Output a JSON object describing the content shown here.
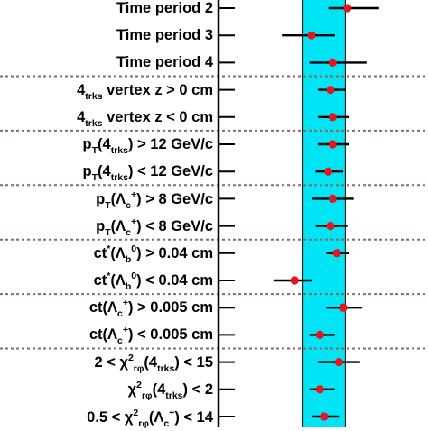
{
  "chart_data": {
    "type": "scatter",
    "orientation": "horizontal",
    "title": "",
    "xlabel": "",
    "ylabel": "",
    "xlim": [
      -5,
      5
    ],
    "band": [
      -1,
      1
    ],
    "grid": false,
    "legend": "none",
    "colors": {
      "point": "#e8141c",
      "error_bar": "#000000",
      "band": "#00e5f5",
      "band_edge": "#000000",
      "separator": "#8c6a58",
      "axis": "#000000"
    },
    "categories": [
      {
        "label": "Time period 2",
        "x": 1.1,
        "err_lo": 0.9,
        "err_hi": 1.5
      },
      {
        "label": "Time period 3",
        "x": -0.6,
        "err_lo": 1.4,
        "err_hi": 1.1
      },
      {
        "label": "Time period 4",
        "x": 0.4,
        "err_lo": 1.1,
        "err_hi": 1.6
      },
      {
        "label": "4trks vertex z > 0 cm",
        "x": 0.3,
        "err_lo": 0.6,
        "err_hi": 0.7
      },
      {
        "label": "4trks vertex z < 0 cm",
        "x": 0.4,
        "err_lo": 0.7,
        "err_hi": 0.8
      },
      {
        "label": "pT(4trks) > 12 GeV/c",
        "x": 0.4,
        "err_lo": 0.7,
        "err_hi": 0.8
      },
      {
        "label": "pT(4trks) < 12 GeV/c",
        "x": 0.2,
        "err_lo": 0.6,
        "err_hi": 0.7
      },
      {
        "label": "pT(Λc+) > 8 GeV/c",
        "x": 0.4,
        "err_lo": 1.0,
        "err_hi": 1.0
      },
      {
        "label": "pT(Λc+) < 8 GeV/c",
        "x": 0.3,
        "err_lo": 0.7,
        "err_hi": 0.8
      },
      {
        "label": "ct*(Λb0) > 0.04 cm",
        "x": 0.6,
        "err_lo": 0.5,
        "err_hi": 0.6
      },
      {
        "label": "ct*(Λb0) < 0.04 cm",
        "x": -1.4,
        "err_lo": 1.0,
        "err_hi": 0.8
      },
      {
        "label": "ct(Λc+) > 0.005 cm",
        "x": 0.9,
        "err_lo": 0.8,
        "err_hi": 0.9
      },
      {
        "label": "ct(Λc+) < 0.005 cm",
        "x": -0.2,
        "err_lo": 0.5,
        "err_hi": 0.7
      },
      {
        "label": "2 < χ2rφ(4trks) < 15",
        "x": 0.7,
        "err_lo": 1.0,
        "err_hi": 1.0
      },
      {
        "label": "χ2rφ(4trks) < 2",
        "x": -0.2,
        "err_lo": 0.5,
        "err_hi": 0.7
      },
      {
        "label": "0.5 < χ2rφ(Λc+) < 14",
        "x": 0.0,
        "err_lo": 0.6,
        "err_hi": 0.7
      }
    ],
    "separators_after": [
      2,
      4,
      6,
      8,
      10,
      12
    ]
  }
}
